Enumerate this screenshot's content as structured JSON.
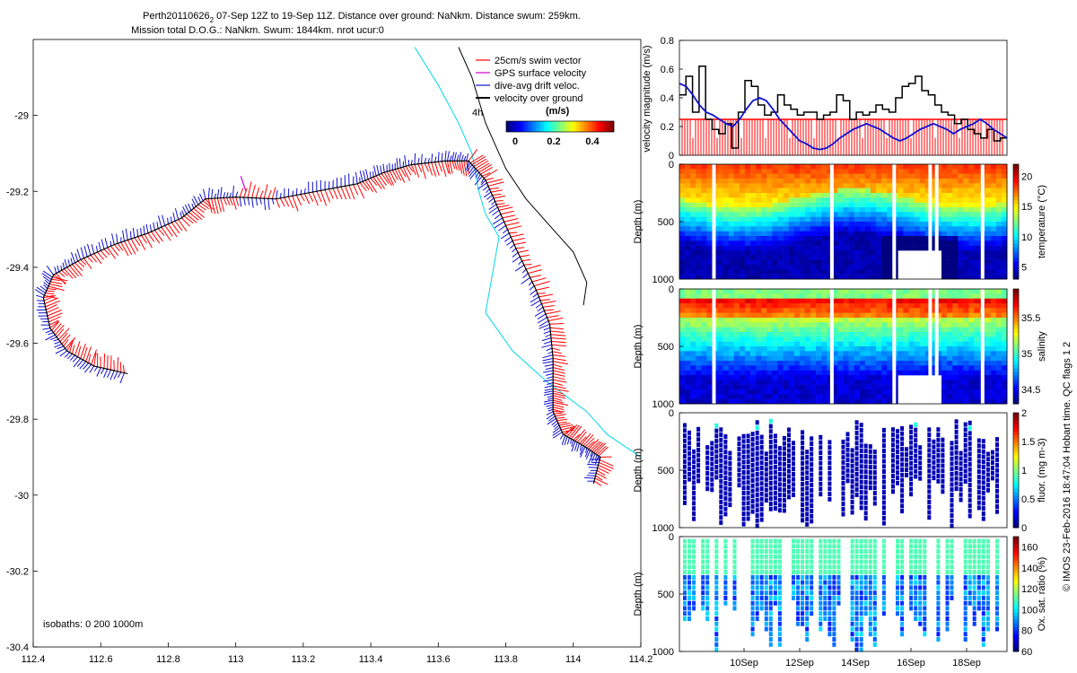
{
  "header": {
    "line1_a": "Perth20110626",
    "line1_sub": "2",
    "line1_b": " 07-Sep 12Z to 19-Sep 11Z. Distance over ground: NaNkm. Distance swum: 259km.",
    "line2": "Mission total D.O.G.: NaNkm. Swum: 1844km. nrot ucur:0"
  },
  "credit": "© IMOS 23-Feb-2016 18:47:04 Hobart time. QC flags 1  2",
  "colors": {
    "swim": "#ff0000",
    "gps": "#d000d0",
    "drift": "#1010d0",
    "ground": "#000000",
    "coast": "#000000",
    "isobath": "#00d8e8",
    "axis": "#000000"
  },
  "chart_data": [
    {
      "type": "line",
      "name": "track-map",
      "xlim": [
        112.4,
        114.2
      ],
      "ylim": [
        -30.4,
        -28.8
      ],
      "xticks": [
        "112.4",
        "112.6",
        "112.8",
        "113",
        "113.2",
        "113.4",
        "113.6",
        "113.8",
        "114",
        "114.2"
      ],
      "yticks": [
        "-29",
        "-29.2",
        "-29.4",
        "-29.6",
        "-29.8",
        "-30",
        "-30.2",
        "-30.4"
      ],
      "legend": {
        "placement": "top-right",
        "entries": [
          "25cm/s swim vector",
          "GPS surface velocity",
          "dive-avg drift veloc.",
          "velocity over ground"
        ],
        "time_label": "4h",
        "colorbar_title": "(m/s)",
        "colorbar_ticks": [
          "0",
          "0.2",
          "0.4"
        ],
        "colorbar_range": [
          0,
          0.5
        ]
      },
      "isobath_label": "isobaths: 0   200  1000m",
      "track": [
        [
          112.68,
          -29.68
        ],
        [
          112.58,
          -29.66
        ],
        [
          112.5,
          -29.62
        ],
        [
          112.45,
          -29.56
        ],
        [
          112.43,
          -29.48
        ],
        [
          112.46,
          -29.42
        ],
        [
          112.54,
          -29.38
        ],
        [
          112.64,
          -29.34
        ],
        [
          112.74,
          -29.31
        ],
        [
          112.84,
          -29.27
        ],
        [
          112.91,
          -29.22
        ],
        [
          113.0,
          -29.215
        ],
        [
          113.12,
          -29.22
        ],
        [
          113.24,
          -29.2
        ],
        [
          113.36,
          -29.18
        ],
        [
          113.44,
          -29.15
        ],
        [
          113.52,
          -29.13
        ],
        [
          113.62,
          -29.12
        ],
        [
          113.69,
          -29.12
        ],
        [
          113.74,
          -29.17
        ],
        [
          113.78,
          -29.25
        ],
        [
          113.83,
          -29.35
        ],
        [
          113.89,
          -29.46
        ],
        [
          113.93,
          -29.55
        ],
        [
          113.94,
          -29.64
        ],
        [
          113.94,
          -29.72
        ],
        [
          113.94,
          -29.78
        ],
        [
          113.97,
          -29.84
        ],
        [
          114.03,
          -29.87
        ],
        [
          114.08,
          -29.9
        ],
        [
          114.06,
          -29.97
        ]
      ],
      "coast": [
        [
          113.66,
          -28.82
        ],
        [
          113.7,
          -28.9
        ],
        [
          113.74,
          -29.02
        ],
        [
          113.8,
          -29.14
        ],
        [
          113.86,
          -29.22
        ],
        [
          113.94,
          -29.3
        ],
        [
          114.0,
          -29.36
        ],
        [
          114.04,
          -29.44
        ],
        [
          114.03,
          -29.5
        ]
      ],
      "isobath": [
        [
          113.53,
          -28.82
        ],
        [
          113.6,
          -28.92
        ],
        [
          113.66,
          -29.02
        ],
        [
          113.7,
          -29.1
        ],
        [
          113.72,
          -29.2
        ],
        [
          113.74,
          -29.26
        ],
        [
          113.78,
          -29.32
        ],
        [
          113.76,
          -29.42
        ],
        [
          113.74,
          -29.52
        ],
        [
          113.82,
          -29.62
        ],
        [
          113.92,
          -29.7
        ],
        [
          114.04,
          -29.78
        ],
        [
          114.1,
          -29.84
        ],
        [
          114.2,
          -29.9
        ]
      ]
    },
    {
      "type": "line",
      "name": "velocity-magnitude",
      "ylabel": "velocity magnitude (m/s)",
      "ylim": [
        0,
        0.8
      ],
      "yticks": [
        "0",
        "0.2",
        "0.4",
        "0.6",
        "0.8"
      ],
      "series": [
        {
          "name": "velocity over ground",
          "color": "#000000",
          "values": [
            0.42,
            0.55,
            0.3,
            0.62,
            0.25,
            0.18,
            0.15,
            0.22,
            0.05,
            0.3,
            0.52,
            0.48,
            0.35,
            0.28,
            0.3,
            0.42,
            0.35,
            0.32,
            0.28,
            0.3,
            0.3,
            0.25,
            0.28,
            0.3,
            0.42,
            0.38,
            0.25,
            0.3,
            0.28,
            0.3,
            0.35,
            0.32,
            0.3,
            0.4,
            0.48,
            0.5,
            0.55,
            0.45,
            0.42,
            0.35,
            0.3,
            0.28,
            0.22,
            0.25,
            0.18,
            0.15,
            0.12,
            0.18,
            0.1,
            0.12
          ]
        },
        {
          "name": "dive-avg drift veloc.",
          "color": "#1010d0",
          "values": [
            0.5,
            0.48,
            0.42,
            0.35,
            0.3,
            0.28,
            0.25,
            0.22,
            0.2,
            0.25,
            0.32,
            0.38,
            0.4,
            0.38,
            0.32,
            0.25,
            0.2,
            0.15,
            0.1,
            0.08,
            0.05,
            0.04,
            0.05,
            0.08,
            0.12,
            0.15,
            0.18,
            0.2,
            0.22,
            0.2,
            0.18,
            0.15,
            0.12,
            0.1,
            0.12,
            0.15,
            0.18,
            0.2,
            0.22,
            0.2,
            0.18,
            0.15,
            0.18,
            0.2,
            0.22,
            0.25,
            0.22,
            0.18,
            0.15,
            0.12
          ]
        },
        {
          "name": "25cm/s swim vector",
          "color": "#ff0000",
          "values": [
            0.25
          ]
        }
      ]
    },
    {
      "type": "heatmap",
      "name": "temperature-section",
      "ylabel": "Depth (m)",
      "yticks": [
        "0",
        "500",
        "1000"
      ],
      "colorbar_label": "temperature (°C)",
      "colorbar_ticks": [
        "20",
        "15",
        "10",
        "5"
      ],
      "colorbar_range": [
        3,
        22
      ],
      "gaps": [
        0.1,
        0.46,
        0.65,
        0.76,
        0.78,
        0.92
      ]
    },
    {
      "type": "heatmap",
      "name": "salinity-section",
      "ylabel": "Depth (m)",
      "yticks": [
        "0",
        "500",
        "1000"
      ],
      "colorbar_label": "salinity",
      "colorbar_ticks": [
        "35.5",
        "35",
        "34.5"
      ],
      "colorbar_range": [
        34.3,
        35.9
      ],
      "gaps": [
        0.1,
        0.46,
        0.65,
        0.76,
        0.78,
        0.92
      ]
    },
    {
      "type": "scatter",
      "name": "fluorescence-section",
      "ylabel": "Depth (m)",
      "yticks": [
        "0",
        "500",
        "1000"
      ],
      "colorbar_label": "fluor. (mg m-3)",
      "colorbar_ticks": [
        "2",
        "1.5",
        "1",
        "0.5",
        "0"
      ],
      "colorbar_range": [
        0,
        2
      ]
    },
    {
      "type": "scatter",
      "name": "oxygen-section",
      "ylabel": "Depth (m)",
      "yticks": [
        "0",
        "500",
        "1000"
      ],
      "xticks": [
        "10Sep",
        "12Sep",
        "14Sep",
        "16Sep",
        "18Sep"
      ],
      "colorbar_label": "Ox. sat. ratio (%)",
      "colorbar_ticks": [
        "160",
        "140",
        "120",
        "100",
        "80",
        "60"
      ],
      "colorbar_range": [
        60,
        170
      ]
    }
  ]
}
